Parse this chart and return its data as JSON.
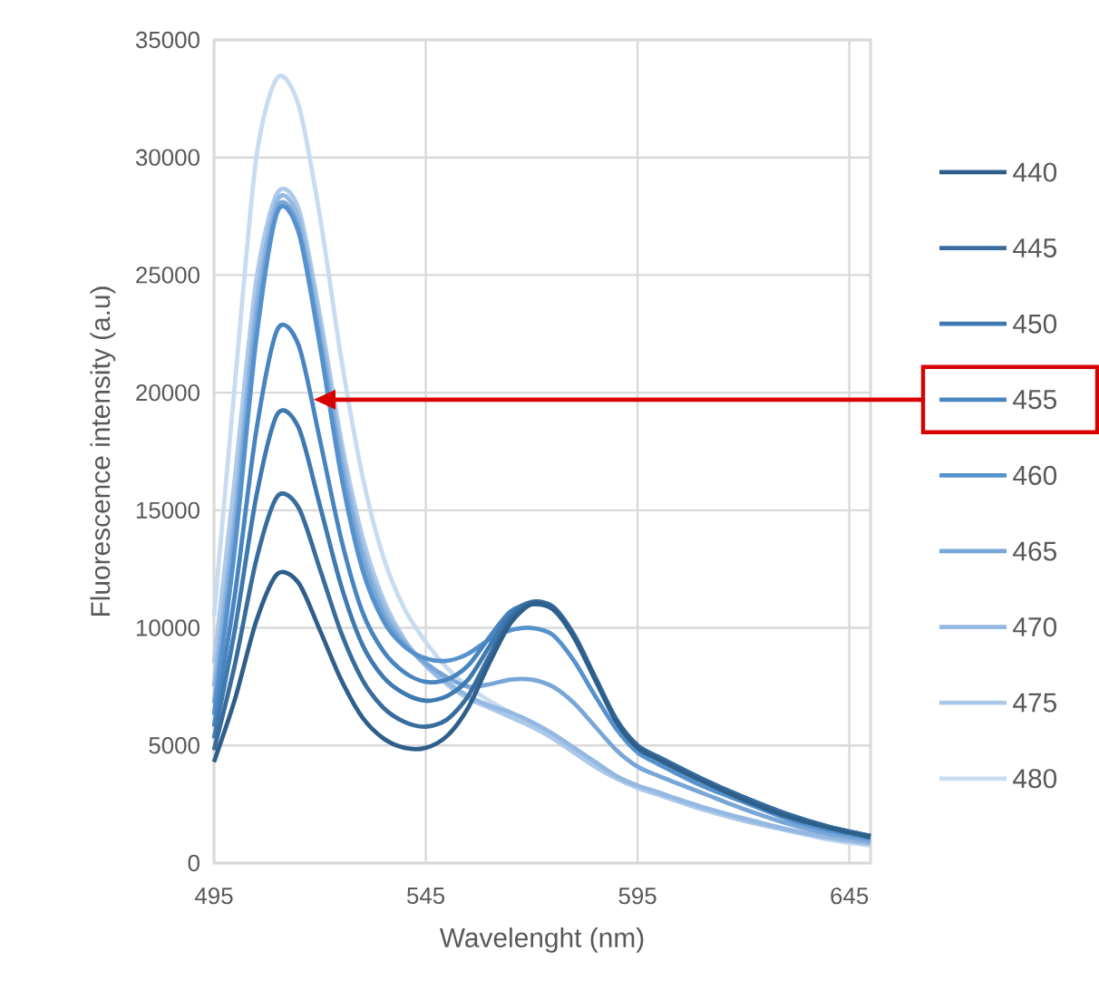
{
  "chart_data": {
    "type": "line",
    "xlabel": "Wavelenght (nm)",
    "ylabel": "Fluorescence intensity (a.u)",
    "x": [
      495,
      500,
      505,
      510,
      515,
      520,
      525,
      530,
      535,
      540,
      545,
      550,
      555,
      560,
      565,
      570,
      575,
      580,
      585,
      590,
      595,
      600,
      610,
      620,
      630,
      640,
      650
    ],
    "series": [
      {
        "name": "440",
        "color": "#2e5f8a",
        "values": [
          4300,
          7000,
          10300,
          12300,
          11900,
          9900,
          7800,
          6200,
          5300,
          4900,
          4900,
          5400,
          6600,
          8500,
          10200,
          11000,
          10800,
          9600,
          7800,
          6000,
          4900,
          4400,
          3500,
          2700,
          2000,
          1500,
          1100
        ]
      },
      {
        "name": "445",
        "color": "#386c9c",
        "values": [
          4800,
          8500,
          12900,
          15600,
          15100,
          12500,
          9800,
          7800,
          6600,
          6000,
          5800,
          6100,
          7100,
          8800,
          10400,
          11100,
          10900,
          9700,
          7900,
          6100,
          5000,
          4500,
          3600,
          2800,
          2100,
          1550,
          1150
        ]
      },
      {
        "name": "450",
        "color": "#3e79b0",
        "values": [
          5300,
          10000,
          15600,
          19100,
          18500,
          15200,
          11800,
          9300,
          7900,
          7200,
          6900,
          7100,
          7800,
          9200,
          10600,
          11100,
          10900,
          9700,
          7900,
          6100,
          5000,
          4500,
          3600,
          2800,
          2100,
          1550,
          1150
        ]
      },
      {
        "name": "455",
        "color": "#4884c0",
        "values": [
          5800,
          11500,
          18400,
          22700,
          22000,
          18000,
          13800,
          10700,
          9000,
          8100,
          7700,
          7800,
          8400,
          9600,
          10700,
          11000,
          10800,
          9600,
          7800,
          6100,
          5000,
          4500,
          3600,
          2800,
          2100,
          1550,
          1150
        ]
      },
      {
        "name": "460",
        "color": "#5591cd",
        "values": [
          6300,
          13500,
          22300,
          27700,
          26800,
          22000,
          16500,
          12500,
          10300,
          9200,
          8700,
          8600,
          8900,
          9500,
          9900,
          10000,
          9700,
          8600,
          7100,
          5700,
          4700,
          4200,
          3300,
          2600,
          1900,
          1400,
          1050
        ]
      },
      {
        "name": "465",
        "color": "#78a6d7",
        "values": [
          6800,
          14200,
          23000,
          27900,
          27000,
          22300,
          17000,
          13000,
          10600,
          9300,
          8500,
          7900,
          7500,
          7600,
          7800,
          7800,
          7500,
          6800,
          5800,
          4800,
          4100,
          3700,
          3000,
          2300,
          1700,
          1250,
          950
        ]
      },
      {
        "name": "470",
        "color": "#93b8e1",
        "values": [
          7500,
          15000,
          23800,
          28200,
          27400,
          22800,
          17500,
          13400,
          10900,
          9400,
          8400,
          7700,
          7100,
          6700,
          6400,
          6000,
          5500,
          4900,
          4300,
          3700,
          3300,
          3000,
          2400,
          1900,
          1450,
          1100,
          850
        ]
      },
      {
        "name": "475",
        "color": "#adc9e9",
        "values": [
          8500,
          16500,
          24800,
          28500,
          27800,
          23300,
          18000,
          13900,
          11200,
          9500,
          8400,
          7600,
          7000,
          6600,
          6200,
          5800,
          5300,
          4700,
          4100,
          3600,
          3200,
          2900,
          2300,
          1800,
          1400,
          1050,
          800
        ]
      },
      {
        "name": "480",
        "color": "#c8dbf0",
        "values": [
          10500,
          20500,
          30000,
          33400,
          32200,
          27500,
          21500,
          16500,
          13000,
          10800,
          9400,
          8300,
          7500,
          6900,
          6400,
          5900,
          5300,
          4700,
          4100,
          3600,
          3200,
          2900,
          2300,
          1800,
          1400,
          1000,
          750
        ]
      }
    ],
    "xlim": [
      495,
      650
    ],
    "xticks": [
      495,
      545,
      595,
      645
    ],
    "ylim": [
      0,
      35000
    ],
    "yticks": [
      0,
      5000,
      10000,
      15000,
      20000,
      25000,
      30000,
      35000
    ],
    "grid": true,
    "legend": "right",
    "marker": "none",
    "line_style": "solid"
  }
}
